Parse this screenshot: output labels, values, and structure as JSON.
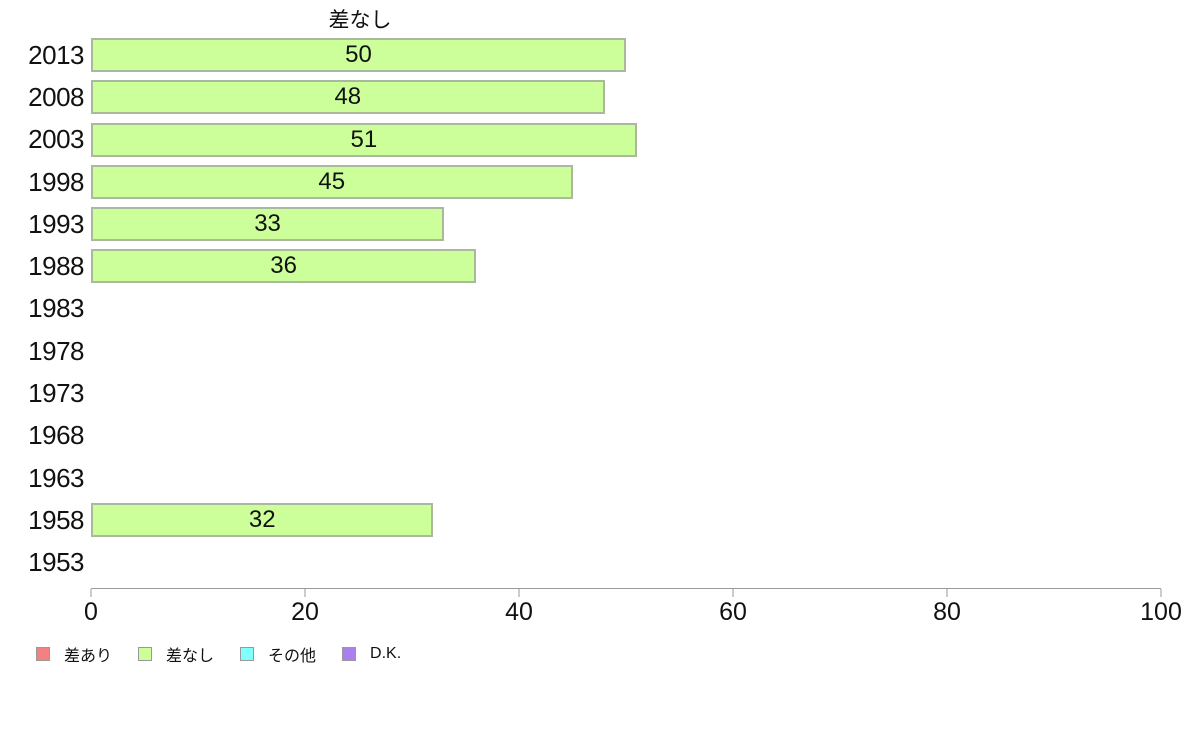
{
  "chart_data": {
    "type": "bar",
    "orientation": "horizontal",
    "title": "差なし",
    "categories": [
      "2013",
      "2008",
      "2003",
      "1998",
      "1993",
      "1988",
      "1983",
      "1978",
      "1973",
      "1968",
      "1963",
      "1958",
      "1953"
    ],
    "values": [
      50,
      48,
      51,
      45,
      33,
      36,
      null,
      null,
      null,
      null,
      null,
      32,
      null
    ],
    "xlabel": "",
    "ylabel": "",
    "xlim": [
      0,
      100
    ],
    "x_ticks": [
      0,
      20,
      40,
      60,
      80,
      100
    ],
    "grid": false,
    "bar_color": "#ccff99",
    "bar_border_color": "#aab89b",
    "legend_position": "bottom-left",
    "legend": [
      {
        "label": "差あり",
        "color": "#f38181"
      },
      {
        "label": "差なし",
        "color": "#ccff99"
      },
      {
        "label": "その他",
        "color": "#80ffff"
      },
      {
        "label": "D.K.",
        "color": "#aa80ee"
      }
    ]
  }
}
